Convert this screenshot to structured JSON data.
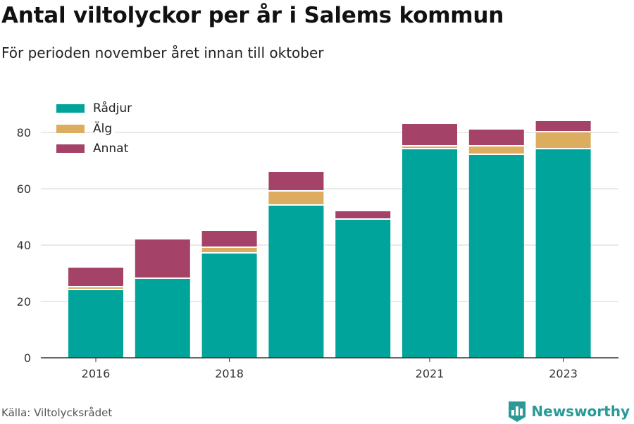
{
  "title": "Antal viltolyckor per år i Salems kommun",
  "subtitle": "För perioden november året innan till oktober",
  "source": "Källa: Viltolycksrådet",
  "brand": {
    "name": "Newsworthy",
    "color": "#2a9a97",
    "icon": "bar-chart-icon"
  },
  "chart_data": {
    "type": "bar",
    "stacked": true,
    "categories": [
      "2016",
      "2017",
      "2018",
      "2019",
      "2020",
      "2021",
      "2022",
      "2023"
    ],
    "x_tick_labels": [
      "2016",
      "",
      "2018",
      "",
      "",
      "2021",
      "",
      "2023"
    ],
    "series": [
      {
        "name": "Rådjur",
        "color": "#00a49a",
        "values": [
          24,
          28,
          37,
          54,
          49,
          74,
          72,
          74
        ]
      },
      {
        "name": "Älg",
        "color": "#dcad5e",
        "values": [
          1,
          0,
          2,
          5,
          0,
          1,
          3,
          6
        ]
      },
      {
        "name": "Annat",
        "color": "#a54268",
        "values": [
          7,
          14,
          6,
          7,
          3,
          8,
          6,
          4
        ]
      }
    ],
    "ylim": [
      0,
      90
    ],
    "yticks": [
      0,
      20,
      40,
      60,
      80
    ],
    "grid": true,
    "legend_position": "top-left"
  }
}
